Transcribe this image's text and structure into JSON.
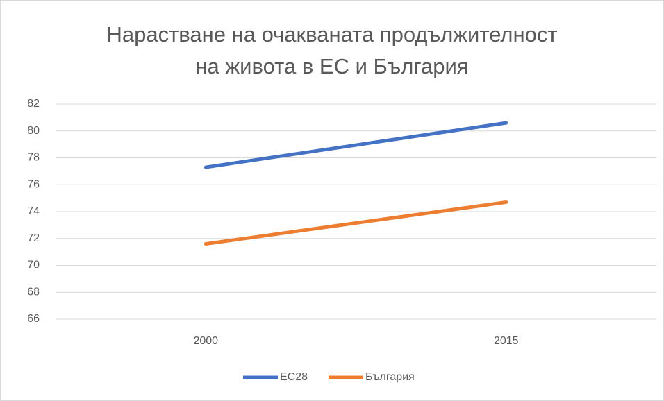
{
  "chart_data": {
    "type": "line",
    "title": [
      "Нарастване на очакваната продължителност",
      "на живота в ЕС и България"
    ],
    "categories": [
      "2000",
      "2015"
    ],
    "series": [
      {
        "name": "ЕС28",
        "color": "#4472c4",
        "values": [
          77.3,
          80.6
        ]
      },
      {
        "name": "България",
        "color": "#ed7d31",
        "values": [
          71.6,
          74.7
        ]
      }
    ],
    "ylim": [
      66,
      82
    ],
    "yticks": [
      66,
      68,
      70,
      72,
      74,
      76,
      78,
      80,
      82
    ],
    "grid": true,
    "legend": "bottom"
  }
}
